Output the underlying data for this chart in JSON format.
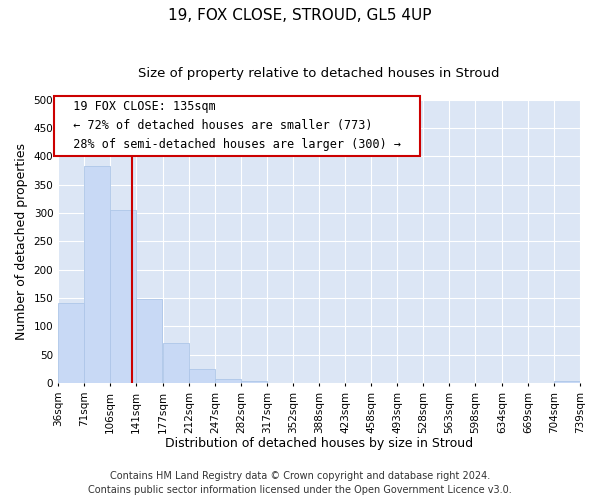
{
  "title": "19, FOX CLOSE, STROUD, GL5 4UP",
  "subtitle": "Size of property relative to detached houses in Stroud",
  "xlabel": "Distribution of detached houses by size in Stroud",
  "ylabel": "Number of detached properties",
  "bar_color": "#c8d9f5",
  "bar_edge_color": "#aec6e8",
  "background_color": "#ffffff",
  "plot_bg_color": "#dce6f5",
  "grid_color": "#ffffff",
  "annotation_box_color": "#ffffff",
  "annotation_box_edge": "#cc0000",
  "vline_color": "#cc0000",
  "bin_edges": [
    36,
    71,
    106,
    141,
    177,
    212,
    247,
    282,
    317,
    352,
    388,
    423,
    458,
    493,
    528,
    563,
    598,
    634,
    669,
    704,
    739
  ],
  "bin_counts": [
    141,
    383,
    305,
    149,
    70,
    24,
    7,
    4,
    0,
    0,
    0,
    0,
    0,
    0,
    0,
    0,
    0,
    0,
    0,
    4
  ],
  "property_size": 135,
  "pct_smaller": 72,
  "num_smaller": 773,
  "pct_larger": 28,
  "num_larger": 300,
  "ylim": [
    0,
    500
  ],
  "yticks": [
    0,
    50,
    100,
    150,
    200,
    250,
    300,
    350,
    400,
    450,
    500
  ],
  "tick_labels": [
    "36sqm",
    "71sqm",
    "106sqm",
    "141sqm",
    "177sqm",
    "212sqm",
    "247sqm",
    "282sqm",
    "317sqm",
    "352sqm",
    "388sqm",
    "423sqm",
    "458sqm",
    "493sqm",
    "528sqm",
    "563sqm",
    "598sqm",
    "634sqm",
    "669sqm",
    "704sqm",
    "739sqm"
  ],
  "footer_line1": "Contains HM Land Registry data © Crown copyright and database right 2024.",
  "footer_line2": "Contains public sector information licensed under the Open Government Licence v3.0.",
  "title_fontsize": 11,
  "subtitle_fontsize": 9.5,
  "axis_label_fontsize": 9,
  "tick_fontsize": 7.5,
  "annotation_fontsize": 8.5,
  "footer_fontsize": 7
}
